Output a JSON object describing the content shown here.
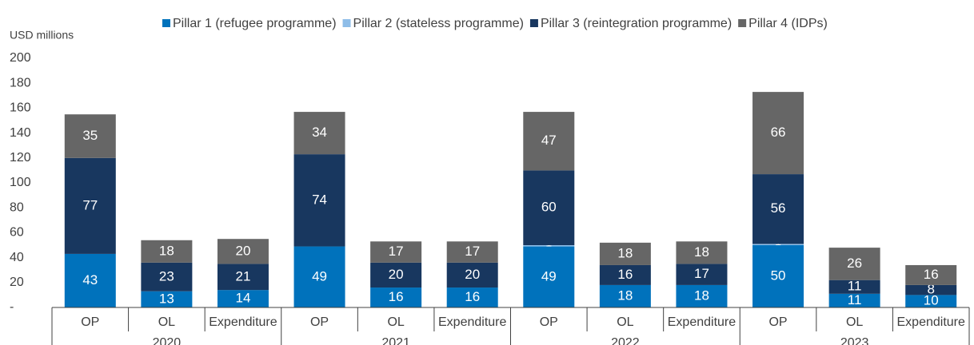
{
  "chart_data": {
    "type": "stacked_bar",
    "y_axis_label": "USD millions",
    "groups": [
      "2020",
      "2021",
      "2022",
      "2023"
    ],
    "categories": [
      "OP",
      "OL",
      "Expenditure",
      "OP",
      "OL",
      "Expenditure",
      "OP",
      "OL",
      "Expenditure",
      "OP",
      "OL",
      "Expenditure"
    ],
    "series": [
      {
        "name": "Pillar 1 (refugee programme)",
        "color": "#0072bc",
        "values": [
          43,
          13,
          14,
          49,
          16,
          16,
          49,
          18,
          18,
          50,
          11,
          10
        ]
      },
      {
        "name": "Pillar 2 (stateless programme)",
        "color": "#8ebde8",
        "values": [
          0,
          0,
          0,
          0,
          0,
          0,
          1,
          0,
          0,
          1,
          0,
          0
        ]
      },
      {
        "name": "Pillar 3 (reintegration programme)",
        "color": "#18375f",
        "values": [
          77,
          23,
          21,
          74,
          20,
          20,
          60,
          16,
          17,
          56,
          11,
          8
        ]
      },
      {
        "name": "Pillar 4 (IDPs)",
        "color": "#666666",
        "values": [
          35,
          18,
          20,
          34,
          17,
          17,
          47,
          18,
          18,
          66,
          26,
          16
        ]
      }
    ],
    "ylim": [
      0,
      200
    ],
    "yticks": [
      {
        "value": 0,
        "label": "-"
      },
      20,
      40,
      60,
      80,
      100,
      120,
      140,
      160,
      180,
      200
    ],
    "legend": "top"
  }
}
